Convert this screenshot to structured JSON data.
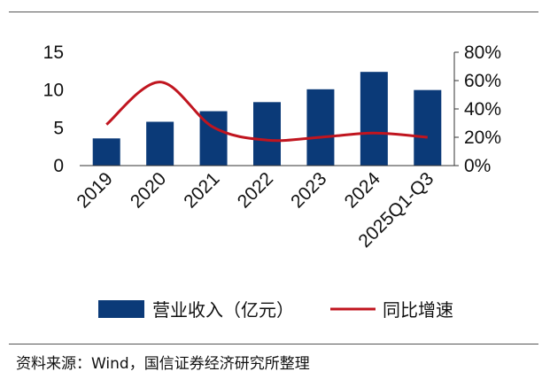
{
  "chart_data": {
    "type": "bar+line",
    "categories": [
      "2019",
      "2020",
      "2021",
      "2022",
      "2023",
      "2024",
      "2025Q1-Q3"
    ],
    "series": [
      {
        "name": "营业收入（亿元）",
        "type": "bar",
        "axis": "left",
        "color": "#0b3a78",
        "values": [
          3.6,
          5.8,
          7.2,
          8.4,
          10.1,
          12.4,
          10.0
        ]
      },
      {
        "name": "同比增速",
        "type": "line",
        "axis": "right",
        "color": "#c0151f",
        "values": [
          29,
          59,
          27,
          18,
          20,
          23,
          20
        ]
      }
    ],
    "y_left": {
      "min": 0,
      "max": 15,
      "ticks": [
        "0",
        "5",
        "10",
        "15"
      ]
    },
    "y_right": {
      "min": 0,
      "max": 80,
      "ticks": [
        "0%",
        "20%",
        "40%",
        "60%",
        "80%"
      ]
    },
    "legend_position": "bottom"
  },
  "source_text": "资料来源：Wind，国信证券经济研究所整理"
}
